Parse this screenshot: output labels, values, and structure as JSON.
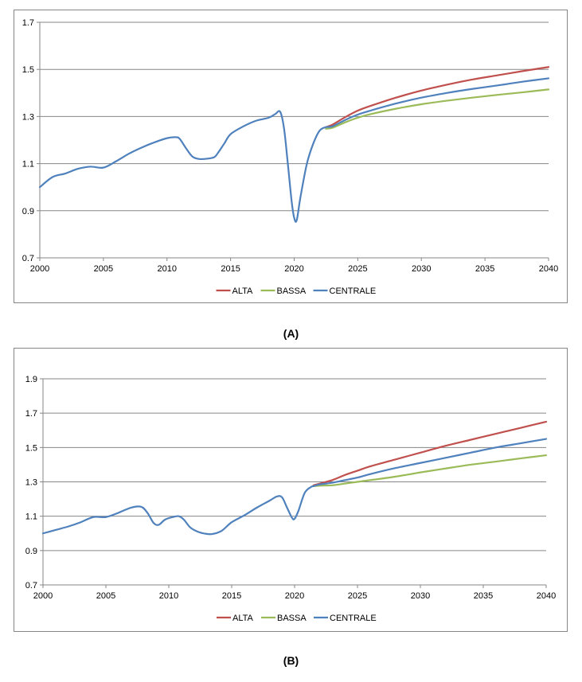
{
  "captions": {
    "a": "(A)",
    "b": "(B)"
  },
  "colors": {
    "ALTA": "#c0504d",
    "BASSA": "#9bbb59",
    "CENTRALE": "#4f81bd",
    "grid": "#868686"
  },
  "chart_data": [
    {
      "type": "line",
      "title": "",
      "xlabel": "",
      "ylabel": "",
      "xlim": [
        2000,
        2040
      ],
      "ylim": [
        0.7,
        1.7
      ],
      "xticks": [
        2000,
        2005,
        2010,
        2015,
        2020,
        2025,
        2030,
        2035,
        2040
      ],
      "yticks": [
        0.7,
        0.9,
        1.1,
        1.3,
        1.5,
        1.7
      ],
      "grid": "horizontal",
      "legend_position": "bottom",
      "series": [
        {
          "name": "ALTA",
          "x": [
            2022.5,
            2023,
            2024,
            2025,
            2026,
            2028,
            2030,
            2032,
            2034,
            2036,
            2038,
            2040
          ],
          "values": [
            1.255,
            1.265,
            1.297,
            1.325,
            1.345,
            1.38,
            1.41,
            1.435,
            1.457,
            1.475,
            1.493,
            1.51
          ]
        },
        {
          "name": "BASSA",
          "x": [
            2022.5,
            2023,
            2024,
            2025,
            2026,
            2028,
            2030,
            2032,
            2034,
            2036,
            2038,
            2040
          ],
          "values": [
            1.248,
            1.252,
            1.275,
            1.295,
            1.31,
            1.333,
            1.352,
            1.367,
            1.38,
            1.392,
            1.403,
            1.415
          ]
        },
        {
          "name": "CENTRALE",
          "x": [
            2000,
            2001,
            2002,
            2003,
            2004,
            2005,
            2006,
            2007,
            2008,
            2009,
            2010,
            2010.7,
            2011,
            2011.5,
            2012,
            2012.5,
            2013,
            2013.7,
            2014,
            2014.5,
            2015,
            2016,
            2017,
            2018,
            2018.5,
            2018.9,
            2019.2,
            2019.5,
            2019.8,
            2020,
            2020.2,
            2020.5,
            2021,
            2021.5,
            2022,
            2022.5,
            2023,
            2024,
            2025,
            2026,
            2028,
            2030,
            2032,
            2034,
            2036,
            2038,
            2040
          ],
          "values": [
            1.0,
            1.043,
            1.058,
            1.078,
            1.087,
            1.083,
            1.11,
            1.142,
            1.168,
            1.19,
            1.208,
            1.212,
            1.205,
            1.165,
            1.13,
            1.12,
            1.12,
            1.127,
            1.145,
            1.185,
            1.225,
            1.258,
            1.282,
            1.295,
            1.31,
            1.32,
            1.25,
            1.1,
            0.94,
            0.87,
            0.86,
            0.96,
            1.1,
            1.185,
            1.24,
            1.255,
            1.258,
            1.285,
            1.308,
            1.325,
            1.355,
            1.38,
            1.4,
            1.417,
            1.432,
            1.448,
            1.462
          ]
        }
      ]
    },
    {
      "type": "line",
      "title": "",
      "xlabel": "",
      "ylabel": "",
      "xlim": [
        2000,
        2040
      ],
      "ylim": [
        0.7,
        1.9
      ],
      "xticks": [
        2000,
        2005,
        2010,
        2015,
        2020,
        2025,
        2030,
        2035,
        2040
      ],
      "yticks": [
        0.7,
        0.9,
        1.1,
        1.3,
        1.5,
        1.7,
        1.9
      ],
      "grid": "horizontal",
      "legend_position": "bottom",
      "series": [
        {
          "name": "ALTA",
          "x": [
            2021.5,
            2022,
            2023,
            2024,
            2025,
            2026,
            2028,
            2030,
            2032,
            2034,
            2036,
            2038,
            2040
          ],
          "values": [
            1.28,
            1.29,
            1.31,
            1.34,
            1.365,
            1.39,
            1.43,
            1.47,
            1.51,
            1.545,
            1.58,
            1.615,
            1.65
          ]
        },
        {
          "name": "BASSA",
          "x": [
            2021.5,
            2022,
            2023,
            2024,
            2025,
            2026,
            2028,
            2030,
            2032,
            2034,
            2036,
            2038,
            2040
          ],
          "values": [
            1.275,
            1.278,
            1.28,
            1.29,
            1.3,
            1.31,
            1.33,
            1.355,
            1.378,
            1.4,
            1.418,
            1.437,
            1.455
          ]
        },
        {
          "name": "CENTRALE",
          "x": [
            2000,
            2001,
            2002,
            2003,
            2004,
            2005,
            2006,
            2007,
            2007.8,
            2008.3,
            2008.8,
            2009.2,
            2009.7,
            2010.3,
            2010.8,
            2011.2,
            2011.7,
            2012.3,
            2013,
            2013.5,
            2014.2,
            2015,
            2016,
            2017,
            2018,
            2018.6,
            2019,
            2019.4,
            2019.8,
            2020,
            2020.3,
            2020.8,
            2021.3,
            2021.5,
            2022,
            2023,
            2024,
            2025,
            2026,
            2028,
            2030,
            2032,
            2034,
            2036,
            2038,
            2040
          ],
          "values": [
            1.0,
            1.02,
            1.04,
            1.065,
            1.095,
            1.095,
            1.12,
            1.15,
            1.155,
            1.12,
            1.06,
            1.05,
            1.08,
            1.095,
            1.1,
            1.08,
            1.035,
            1.01,
            0.997,
            0.997,
            1.015,
            1.065,
            1.105,
            1.15,
            1.19,
            1.215,
            1.21,
            1.15,
            1.09,
            1.085,
            1.13,
            1.235,
            1.27,
            1.275,
            1.285,
            1.295,
            1.31,
            1.325,
            1.345,
            1.38,
            1.41,
            1.44,
            1.47,
            1.5,
            1.525,
            1.55
          ]
        }
      ]
    }
  ]
}
